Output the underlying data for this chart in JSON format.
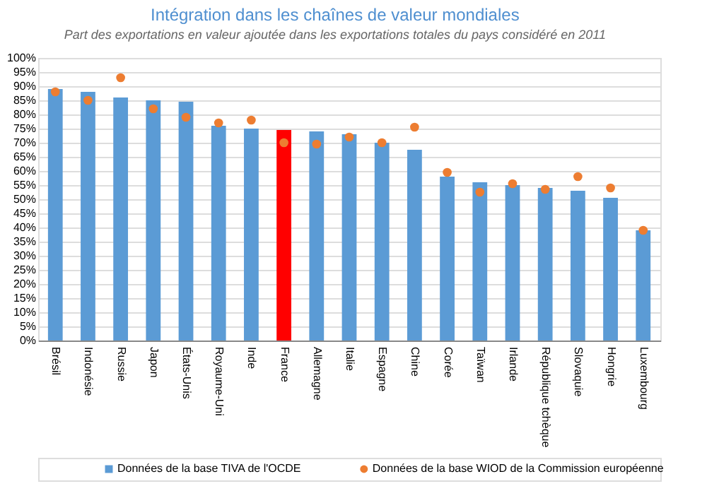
{
  "chart_data": {
    "type": "bar",
    "title": "Intégration dans les chaînes de valeur mondiales",
    "subtitle": "Part des exportations en valeur ajoutée dans les exportations totales du pays considéré en 2011",
    "categories": [
      "Brésil",
      "Indonésie",
      "Russie",
      "Japon",
      "États-Unis",
      "Royaume-Uni",
      "Inde",
      "France",
      "Allemagne",
      "Italie",
      "Espagne",
      "Chine",
      "Corée",
      "Taïwan",
      "Irlande",
      "République tchèque",
      "Slovaquie",
      "Hongrie",
      "Luxembourg"
    ],
    "series": [
      {
        "name": "Données de la base TIVA de l'OCDE",
        "color": "#5b9bd5",
        "colors": [
          "#5b9bd5",
          "#5b9bd5",
          "#5b9bd5",
          "#5b9bd5",
          "#5b9bd5",
          "#5b9bd5",
          "#5b9bd5",
          "#ff0000",
          "#5b9bd5",
          "#5b9bd5",
          "#5b9bd5",
          "#5b9bd5",
          "#5b9bd5",
          "#5b9bd5",
          "#5b9bd5",
          "#5b9bd5",
          "#5b9bd5",
          "#5b9bd5",
          "#5b9bd5"
        ],
        "values": [
          89,
          88,
          86,
          85,
          84.5,
          76,
          75,
          74.5,
          74,
          73,
          70,
          67.5,
          58,
          56,
          55,
          54,
          53,
          50.5,
          39
        ]
      },
      {
        "name": "Données de la base WIOD de la Commission européenne",
        "type": "scatter",
        "color": "#ed7d31",
        "values": [
          88,
          85,
          93,
          82,
          79,
          77,
          78,
          70,
          69.5,
          72,
          70,
          75.5,
          59.5,
          52.5,
          55.5,
          53.5,
          58,
          54,
          39
        ]
      }
    ],
    "ylim": [
      0,
      100
    ],
    "yticks": [
      {
        "value": 0,
        "label": "0%"
      },
      {
        "value": 5,
        "label": "5%"
      },
      {
        "value": 10,
        "label": "10%"
      },
      {
        "value": 15,
        "label": "15%"
      },
      {
        "value": 20,
        "label": "20%"
      },
      {
        "value": 25,
        "label": "25%"
      },
      {
        "value": 30,
        "label": "30%"
      },
      {
        "value": 35,
        "label": "35%"
      },
      {
        "value": 40,
        "label": "40%"
      },
      {
        "value": 45,
        "label": "45%"
      },
      {
        "value": 50,
        "label": "50%"
      },
      {
        "value": 55,
        "label": "55%"
      },
      {
        "value": 60,
        "label": "60%"
      },
      {
        "value": 65,
        "label": "65%"
      },
      {
        "value": 70,
        "label": "70%"
      },
      {
        "value": 75,
        "label": "75%"
      },
      {
        "value": 80,
        "label": "80%"
      },
      {
        "value": 85,
        "label": "85%"
      },
      {
        "value": 90,
        "label": "90%"
      },
      {
        "value": 95,
        "label": "95%"
      },
      {
        "value": 100,
        "label": "100%"
      }
    ],
    "grid": "y",
    "legend": "bottom",
    "marker": "circle"
  }
}
